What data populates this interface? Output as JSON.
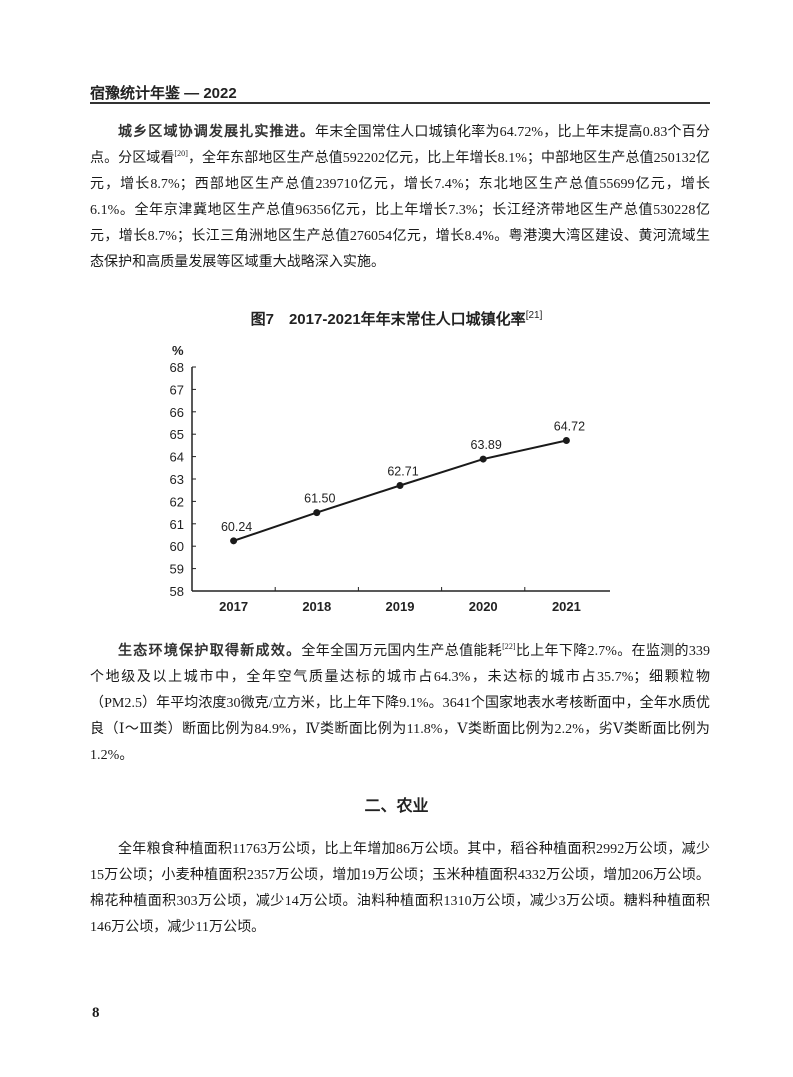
{
  "header": {
    "title": "宿豫统计年鉴 — 2022"
  },
  "paragraphs": [
    {
      "lead": "城乡区域协调发展扎实推进。",
      "text_a": "年末全国常住人口城镇化率为64.72%，比上年末提高0.83个百分点。分区域看",
      "note": "[20]",
      "text_b": "，全年东部地区生产总值592202亿元，比上年增长8.1%；中部地区生产总值250132亿元，增长8.7%；西部地区生产总值239710亿元，增长7.4%；东北地区生产总值55699亿元，增长6.1%。全年京津冀地区生产总值96356亿元，比上年增长7.3%；长江经济带地区生产总值530228亿元，增长8.7%；长江三角洲地区生产总值276054亿元，增长8.4%。粤港澳大湾区建设、黄河流域生态保护和高质量发展等区域重大战略深入实施。"
    },
    {
      "lead": "生态环境保护取得新成效。",
      "text_a": "全年全国万元国内生产总值能耗",
      "note": "[22]",
      "text_b": "比上年下降2.7%。在监测的339个地级及以上城市中，全年空气质量达标的城市占64.3%，未达标的城市占35.7%；细颗粒物（PM2.5）年平均浓度30微克/立方米，比上年下降9.1%。3641个国家地表水考核断面中，全年水质优良（Ⅰ～Ⅲ类）断面比例为84.9%，Ⅳ类断面比例为11.8%，Ⅴ类断面比例为2.2%，劣Ⅴ类断面比例为1.2%。"
    },
    {
      "lead": "",
      "text_a": "全年粮食种植面积11763万公顷，比上年增加86万公顷。其中，稻谷种植面积2992万公顷，减少15万公顷；小麦种植面积2357万公顷，增加19万公顷；玉米种植面积4332万公顷，增加206万公顷。棉花种植面积303万公顷，减少14万公顷。油料种植面积1310万公顷，减少3万公顷。糖料种植面积146万公顷，减少11万公顷。",
      "note": "",
      "text_b": ""
    }
  ],
  "section_heading": "二、农业",
  "page_number": "8",
  "chart_data": {
    "type": "line",
    "title": "图7　2017-2021年年末常住人口城镇化率",
    "title_note": "[21]",
    "ylabel": "%",
    "xlabel": "",
    "categories": [
      "2017",
      "2018",
      "2019",
      "2020",
      "2021"
    ],
    "values": [
      60.24,
      61.5,
      62.71,
      63.89,
      64.72
    ],
    "data_labels": [
      "60.24",
      "61.50",
      "62.71",
      "63.89",
      "64.72"
    ],
    "ylim": [
      58,
      68
    ],
    "yticks": [
      "58",
      "59",
      "60",
      "61",
      "62",
      "63",
      "64",
      "65",
      "66",
      "67",
      "68"
    ],
    "grid": false,
    "legend": "none",
    "line_color": "#1a1a1a"
  }
}
